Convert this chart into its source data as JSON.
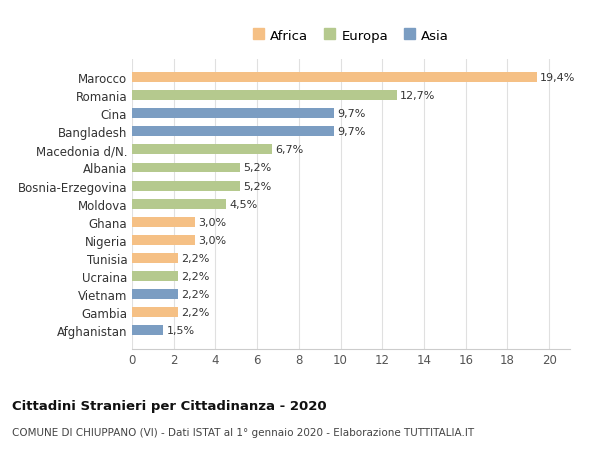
{
  "countries": [
    "Afghanistan",
    "Gambia",
    "Vietnam",
    "Ucraina",
    "Tunisia",
    "Nigeria",
    "Ghana",
    "Moldova",
    "Bosnia-Erzegovina",
    "Albania",
    "Macedonia d/N.",
    "Bangladesh",
    "Cina",
    "Romania",
    "Marocco"
  ],
  "values": [
    1.5,
    2.2,
    2.2,
    2.2,
    2.2,
    3.0,
    3.0,
    4.5,
    5.2,
    5.2,
    6.7,
    9.7,
    9.7,
    12.7,
    19.4
  ],
  "labels": [
    "1,5%",
    "2,2%",
    "2,2%",
    "2,2%",
    "2,2%",
    "3,0%",
    "3,0%",
    "4,5%",
    "5,2%",
    "5,2%",
    "6,7%",
    "9,7%",
    "9,7%",
    "12,7%",
    "19,4%"
  ],
  "continents": [
    "Asia",
    "Africa",
    "Asia",
    "Europa",
    "Africa",
    "Africa",
    "Africa",
    "Europa",
    "Europa",
    "Europa",
    "Europa",
    "Asia",
    "Asia",
    "Europa",
    "Africa"
  ],
  "colors": {
    "Africa": "#F5C085",
    "Europa": "#B5C98E",
    "Asia": "#7B9DC2"
  },
  "legend_labels": [
    "Africa",
    "Europa",
    "Asia"
  ],
  "legend_colors": [
    "#F5C085",
    "#B5C98E",
    "#7B9DC2"
  ],
  "xlim": [
    0,
    21
  ],
  "xticks": [
    0,
    2,
    4,
    6,
    8,
    10,
    12,
    14,
    16,
    18,
    20
  ],
  "title_bold": "Cittadini Stranieri per Cittadinanza - 2020",
  "subtitle": "COMUNE DI CHIUPPANO (VI) - Dati ISTAT al 1° gennaio 2020 - Elaborazione TUTTITALIA.IT",
  "bg_color": "#ffffff",
  "grid_color": "#e0e0e0",
  "bar_height": 0.55,
  "label_fontsize": 8,
  "tick_fontsize": 8.5,
  "legend_fontsize": 9.5,
  "title_fontsize": 9.5,
  "subtitle_fontsize": 7.5
}
